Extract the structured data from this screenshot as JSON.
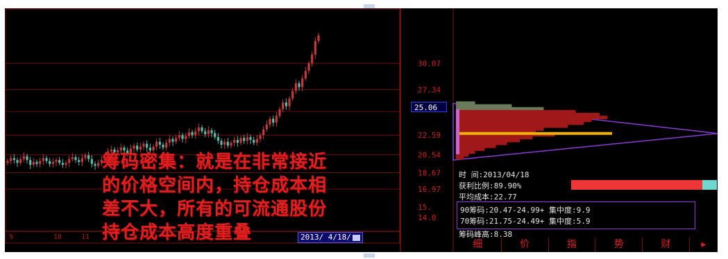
{
  "chart_data": {
    "type": "candlestick",
    "title": "",
    "xlabel": "",
    "ylabel": "",
    "ylim": [
      14.0,
      33.0
    ],
    "y_tick_labels": [
      "30.07",
      "27.34",
      "25.06",
      "22.59",
      "20.54",
      "18.67",
      "16.97",
      "15.1",
      "14.0"
    ],
    "x_tick_labels": [
      "9",
      "10",
      "11"
    ],
    "price_close_series": [
      19.9,
      20.2,
      20.0,
      19.7,
      20.1,
      20.4,
      20.0,
      19.5,
      19.8,
      19.6,
      19.9,
      20.2,
      19.9,
      19.6,
      19.8,
      20.0,
      19.7,
      19.5,
      19.7,
      20.1,
      20.3,
      20.0,
      19.8,
      20.2,
      20.5,
      20.1,
      19.6,
      19.4,
      19.7,
      20.0,
      20.4,
      20.9,
      21.1,
      20.8,
      21.0,
      21.3,
      21.0,
      20.7,
      21.2,
      21.5,
      21.1,
      21.4,
      21.7,
      21.3,
      21.0,
      21.4,
      21.9,
      21.6,
      21.3,
      21.8,
      22.2,
      21.9,
      22.3,
      22.6,
      22.2,
      22.5,
      22.9,
      22.6,
      23.0,
      23.4,
      23.0,
      22.7,
      23.1,
      22.8,
      22.4,
      22.0,
      21.6,
      21.9,
      21.5,
      21.8,
      22.1,
      21.8,
      22.3,
      22.0,
      22.4,
      22.1,
      21.8,
      22.2,
      22.6,
      23.2,
      23.7,
      24.3,
      23.9,
      24.6,
      25.3,
      26.0,
      25.6,
      26.4,
      27.2,
      28.0,
      27.6,
      28.5,
      29.3,
      30.1,
      31.0,
      32.4,
      33.0
    ],
    "chip_distribution": {
      "price_levels": [
        25.9,
        25.6,
        25.3,
        25.0,
        24.7,
        24.4,
        24.1,
        23.8,
        23.5,
        23.2,
        22.9,
        22.6,
        22.3,
        22.0,
        21.7,
        21.4,
        21.1,
        20.8,
        20.5,
        20.2
      ],
      "relative_volume": [
        0.12,
        0.35,
        0.55,
        0.75,
        0.9,
        0.95,
        0.85,
        0.8,
        0.7,
        0.55,
        0.5,
        0.62,
        0.48,
        0.4,
        0.32,
        0.25,
        0.18,
        0.12,
        0.08,
        0.05
      ],
      "avg_cost_line": 22.77
    }
  },
  "price_labels": {
    "current": "25.06",
    "levels": [
      "30.07",
      "27.34",
      "22.59",
      "20.54",
      "18.67",
      "16.97",
      "15.",
      "14.0"
    ]
  },
  "caption_lines": [
    "筹码密集：就是在非常接近",
    "的价格空间内，持仓成本相",
    "差不大，所有的可流通股份",
    "持仓成本高度重叠"
  ],
  "date_badge": "2013/ 4/18/",
  "info_panel": {
    "time_label": "时      间:2013/04/18",
    "profit_label": "获利比例:89.90%",
    "profit_ratio": 0.899,
    "avg_cost": "平均成本:22.77",
    "chip90": "90筹码:20.47-24.99+ 集中度:9.9",
    "chip70": "70筹码:21.75-24.49+ 集中度:5.9",
    "peak": "筹码峰高:8.38"
  },
  "bottom_tabs": [
    "细",
    "价",
    "指",
    "势",
    "财"
  ],
  "colors": {
    "background": "#000000",
    "up": "#c23a3a",
    "down": "#5fb8a8",
    "grid": "#6a0d0d",
    "text_red": "#e02020",
    "chip_red": "#a01818",
    "avg_line": "#f0b400",
    "purple": "#8a3bd6",
    "bar_red": "#ef3636",
    "bar_cyan": "#6fd6d0"
  }
}
